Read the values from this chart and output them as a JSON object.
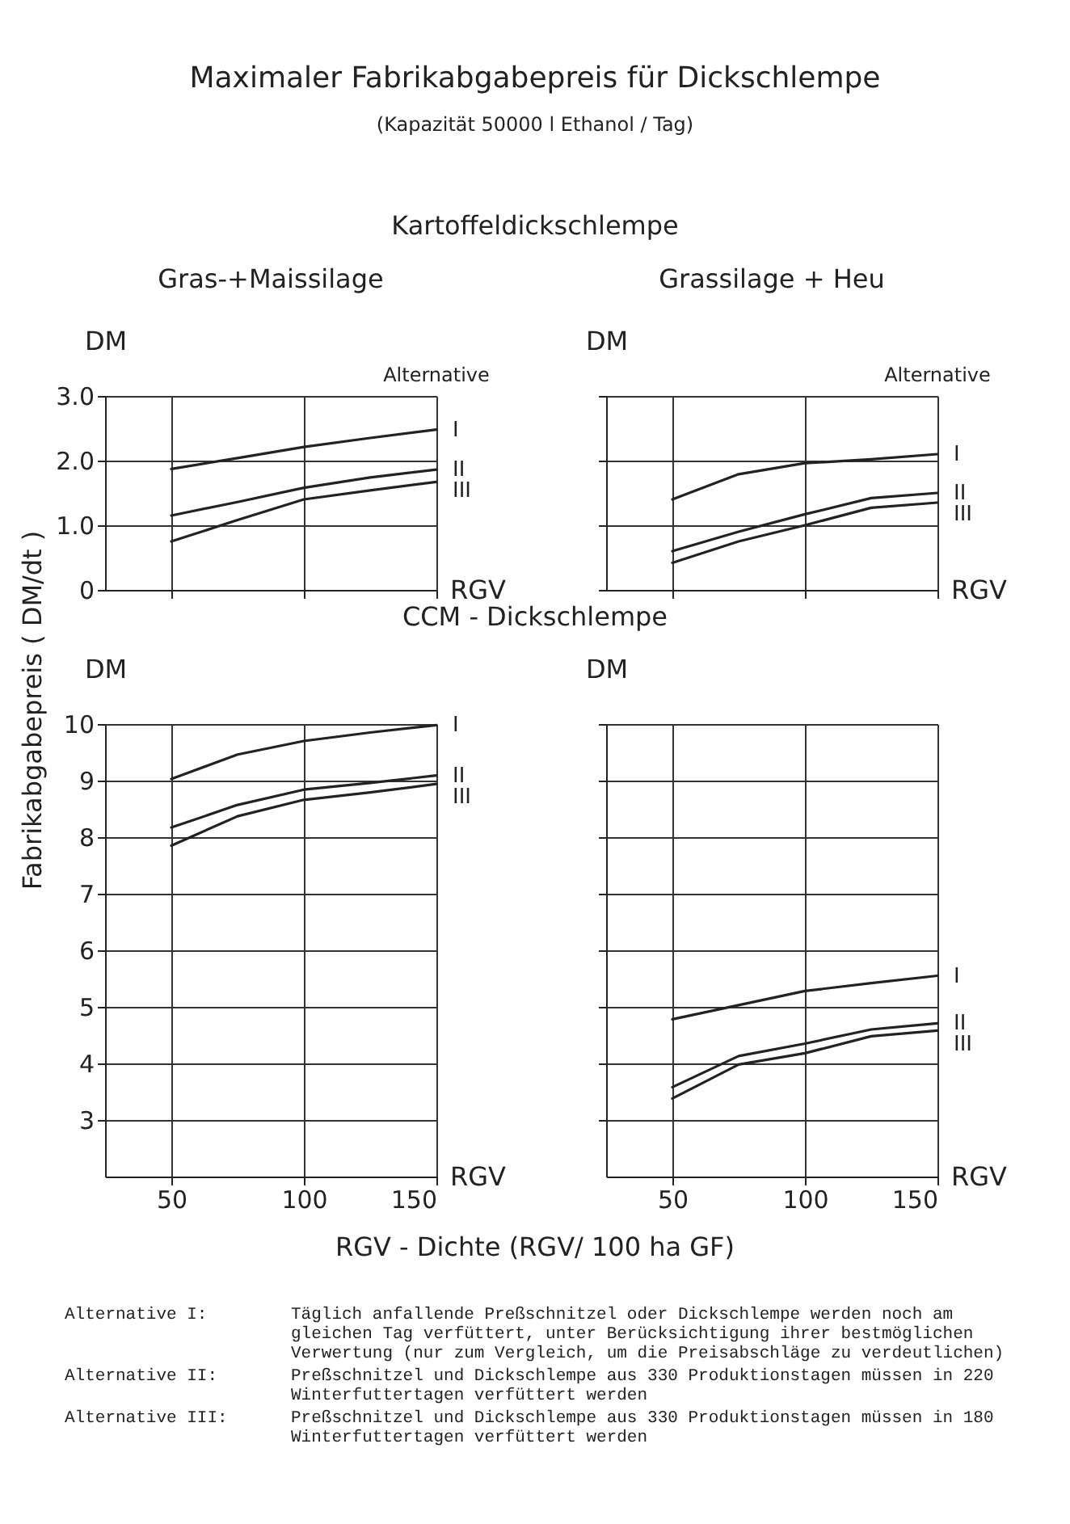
{
  "chart_data": [
    {
      "type": "other",
      "title": "Maximaler Fabrikabgabepreis für Dickschlempe",
      "subtitle": "(Kapazität 50000 l Ethanol / Tag)",
      "annotations": [
        "Kartoffeldickschlempe",
        "CCM - Dickschlempe",
        "Fabrikabgabepreis ( DM/dt )",
        "RGV - Dichte (RGV/ 100 ha GF)",
        "Alternative I: Täglich anfallende Preßschnitzel oder Dickschlempe werden noch am gleichen Tag verfüttert, unter Berücksichtigung ihrer bestmöglichen Verwertung (nur zum Vergleich, um die Preisabschläge zu verdeutlichen)",
        "Alternative II: Preßschnitzel und Dickschlempe aus 330 Produktionstagen müssen in 220 Winterfuttertagen verfüttert werden",
        "Alternative III: Preßschnitzel und Dickschlempe aus 330 Produktionstagen müssen in 180 Winterfuttertagen verfüttert werden"
      ]
    },
    {
      "type": "line",
      "title": "Gras-+Maissilage",
      "xlabel": "RGV",
      "ylabel": "DM",
      "annotations": [
        "Alternative"
      ],
      "x": [
        50,
        75,
        100,
        125,
        150
      ],
      "series": [
        {
          "name": "I",
          "color": "#222222",
          "values": [
            1.87,
            2.04,
            2.21,
            2.35,
            2.48
          ]
        },
        {
          "name": "II",
          "color": "#222222",
          "values": [
            1.15,
            1.36,
            1.58,
            1.74,
            1.86
          ]
        },
        {
          "name": "III",
          "color": "#222222",
          "values": [
            0.75,
            1.08,
            1.4,
            1.54,
            1.67
          ]
        }
      ],
      "xlim": [
        25,
        150
      ],
      "xticks": [
        50,
        100,
        150
      ],
      "ylim": [
        0,
        3
      ],
      "yticks": [
        0,
        {
          "value": 1,
          "label": "1.0"
        },
        {
          "value": 2,
          "label": "2.0"
        },
        {
          "value": 3,
          "label": "3.0"
        }
      ],
      "grid": true,
      "tick_labels": "y"
    },
    {
      "type": "line",
      "title": "Grassilage + Heu",
      "xlabel": "RGV",
      "ylabel": "DM",
      "annotations": [
        "Alternative"
      ],
      "x": [
        50,
        75,
        100,
        125,
        150
      ],
      "series": [
        {
          "name": "I",
          "color": "#222222",
          "values": [
            1.4,
            1.79,
            1.96,
            2.02,
            2.1
          ]
        },
        {
          "name": "II",
          "color": "#222222",
          "values": [
            0.6,
            0.9,
            1.17,
            1.42,
            1.5
          ]
        },
        {
          "name": "III",
          "color": "#222222",
          "values": [
            0.42,
            0.75,
            1.0,
            1.27,
            1.35
          ]
        }
      ],
      "xlim": [
        25,
        150
      ],
      "xticks": [
        50,
        100,
        150
      ],
      "ylim": [
        0,
        3
      ],
      "yticks": [
        0,
        1,
        2,
        3
      ],
      "grid": true,
      "tick_labels": false
    },
    {
      "type": "line",
      "xlabel": "RGV",
      "ylabel": "DM",
      "x": [
        50,
        75,
        100,
        125,
        150
      ],
      "series": [
        {
          "name": "I",
          "color": "#222222",
          "values": [
            9.03,
            9.46,
            9.7,
            9.85,
            9.98
          ]
        },
        {
          "name": "II",
          "color": "#222222",
          "values": [
            8.17,
            8.57,
            8.84,
            8.96,
            9.09
          ]
        },
        {
          "name": "III",
          "color": "#222222",
          "values": [
            7.85,
            8.37,
            8.66,
            8.79,
            8.94
          ]
        }
      ],
      "xlim": [
        25,
        150
      ],
      "xticks": [
        50,
        100,
        150
      ],
      "ylim": [
        2,
        10
      ],
      "yticks": [
        3,
        4,
        5,
        6,
        7,
        8,
        9,
        10
      ],
      "grid": true
    },
    {
      "type": "line",
      "xlabel": "RGV",
      "ylabel": "DM",
      "x": [
        50,
        75,
        100,
        125,
        150
      ],
      "series": [
        {
          "name": "I",
          "color": "#222222",
          "values": [
            4.78,
            5.03,
            5.28,
            5.42,
            5.55
          ]
        },
        {
          "name": "II",
          "color": "#222222",
          "values": [
            3.58,
            4.13,
            4.35,
            4.6,
            4.71
          ]
        },
        {
          "name": "III",
          "color": "#222222",
          "values": [
            3.38,
            3.98,
            4.18,
            4.48,
            4.58
          ]
        }
      ],
      "xlim": [
        25,
        150
      ],
      "xticks": [
        50,
        100,
        150
      ],
      "ylim": [
        2,
        10
      ],
      "yticks": [
        3,
        4,
        5,
        6,
        7,
        8,
        9,
        10
      ],
      "grid": true,
      "tick_labels": "x"
    }
  ]
}
